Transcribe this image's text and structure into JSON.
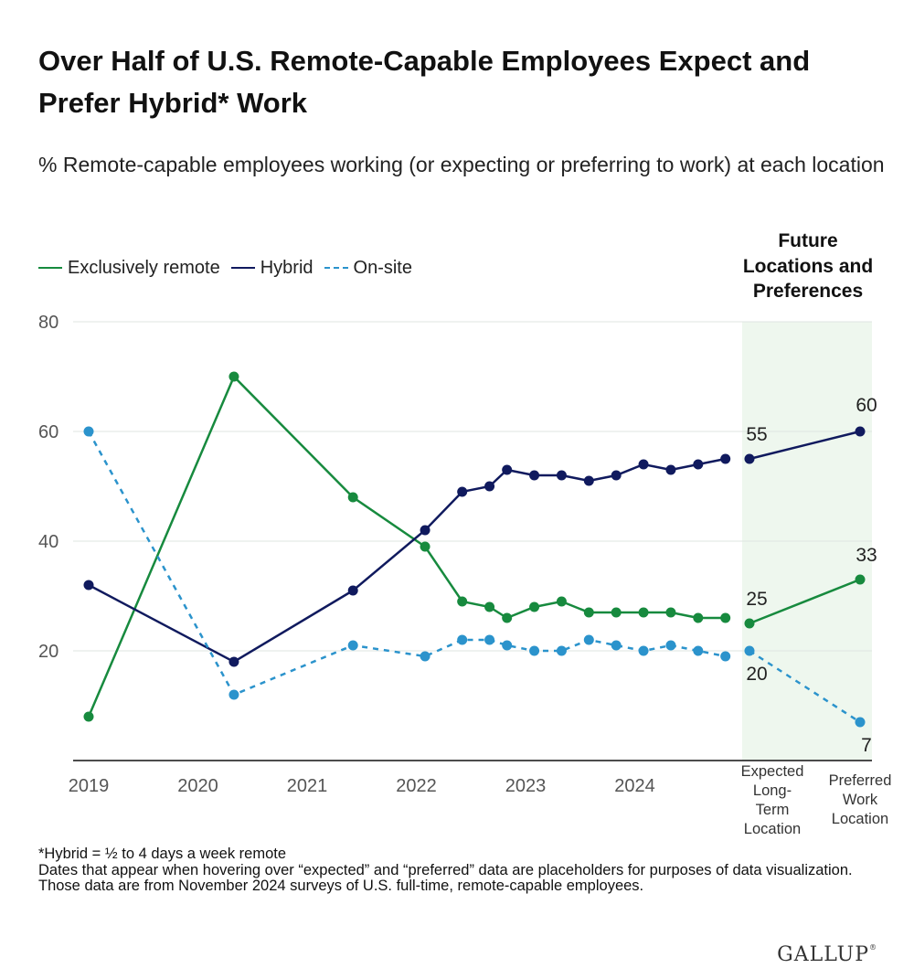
{
  "title": "Over Half of U.S. Remote-Capable Employees Expect and Prefer Hybrid* Work",
  "subtitle": "% Remote-capable employees working (or expecting or preferring to work) at each location",
  "future_section_label": "Future Locations and Preferences",
  "notes": [
    "*Hybrid = ½ to 4 days a week remote",
    "Dates that appear when hovering over “expected” and “preferred” data are placeholders for purposes of data visualization. Those data are from November 2024 surveys of U.S. full-time, remote-capable employees."
  ],
  "logo": "GALLUP",
  "colors": {
    "remote": "#178a3e",
    "hybrid": "#101a5e",
    "onsite": "#2b93cc",
    "future_shade": "#eef7ee",
    "grid": "#dfe6e2",
    "axis": "#111111"
  },
  "chart_data": {
    "type": "line",
    "title": "Over Half of U.S. Remote-Capable Employees Expect and Prefer Hybrid* Work",
    "xlabel": "",
    "ylabel": "",
    "ylim": [
      0,
      80
    ],
    "yticks": [
      20,
      40,
      60,
      80
    ],
    "grid": true,
    "legend": "top-left",
    "x_tick_labels": [
      "2019",
      "2020",
      "2021",
      "2022",
      "2023",
      "2024"
    ],
    "future_categories": [
      "Expected Long-Term Location",
      "Preferred Work Location"
    ],
    "future_category_lines": [
      [
        "Expected",
        "Long-",
        "Term",
        "Location"
      ],
      [
        "Preferred",
        "Work",
        "Location"
      ]
    ],
    "x": [
      2019.0,
      2020.33,
      2021.42,
      2022.08,
      2022.42,
      2022.67,
      2022.83,
      2023.08,
      2023.33,
      2023.58,
      2023.83,
      2024.08,
      2024.33,
      2024.58,
      2024.83
    ],
    "series": [
      {
        "name": "Exclusively remote",
        "style": "solid",
        "values": [
          8,
          70,
          48,
          39,
          29,
          28,
          26,
          28,
          29,
          27,
          27,
          27,
          27,
          26,
          26
        ],
        "future_values": [
          25,
          33
        ]
      },
      {
        "name": "Hybrid",
        "style": "solid",
        "values": [
          32,
          18,
          31,
          42,
          49,
          50,
          53,
          52,
          52,
          51,
          52,
          54,
          53,
          54,
          55
        ],
        "future_values": [
          55,
          60
        ]
      },
      {
        "name": "On-site",
        "style": "dashed",
        "values": [
          60,
          12,
          21,
          19,
          22,
          22,
          21,
          20,
          20,
          22,
          21,
          20,
          21,
          20,
          19
        ],
        "future_values": [
          20,
          7
        ]
      }
    ],
    "future_value_labels": [
      "55",
      "60",
      "25",
      "33",
      "20",
      "7"
    ]
  }
}
